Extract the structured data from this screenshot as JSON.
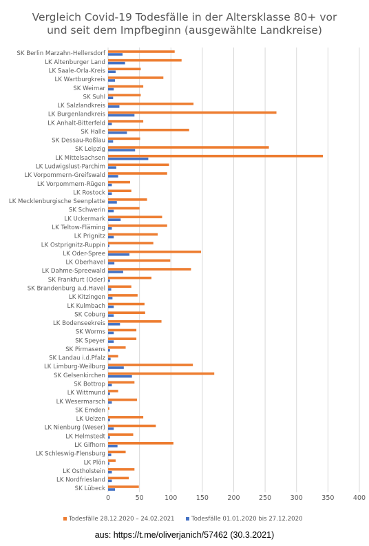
{
  "chart_data": {
    "type": "bar",
    "orientation": "horizontal",
    "title": "Vergleich Covid-19 Todesfälle in der Altersklasse 80+ vor und seit dem Impfbeginn (ausgewählte Landkreise)",
    "title_lines": [
      "Vergleich Covid-19 Todesfälle in der Altersklasse 80+ vor",
      "und seit dem Impfbeginn (ausgewählte Landkreise)"
    ],
    "xlim": [
      0,
      400
    ],
    "xticks": [
      0,
      50,
      100,
      150,
      200,
      250,
      300,
      350,
      400
    ],
    "grid": true,
    "legend_position": "bottom",
    "categories": [
      "SK Berlin Marzahn-Hellersdorf",
      "LK Altenburger Land",
      "LK Saale-Orla-Kreis",
      "LK Wartburgkreis",
      "SK Weimar",
      "SK Suhl",
      "LK Salzlandkreis",
      "LK Burgenlandkreis",
      "LK Anhalt-Bitterfeld",
      "SK Halle",
      "SK Dessau-Roßlau",
      "SK Leipzig",
      "LK Mittelsachsen",
      "LK Ludwigslust-Parchim",
      "LK Vorpommern-Greifswald",
      "LK Vorpommern-Rügen",
      "LK Rostock",
      "LK Mecklenburgische Seenplatte",
      "SK Schwerin",
      "LK Uckermark",
      "LK Teltow-Fläming",
      "LK Prignitz",
      "LK Ostprignitz-Ruppin",
      "LK Oder-Spree",
      "LK Oberhavel",
      "LK Dahme-Spreewald",
      "SK Frankfurt (Oder)",
      "SK Brandenburg a.d.Havel",
      "LK Kitzingen",
      "LK Kulmbach",
      "SK Coburg",
      "LK Bodenseekreis",
      "SK Worms",
      "SK Speyer",
      "SK Pirmasens",
      "SK Landau i.d.Pfalz",
      "LK Limburg-Weilburg",
      "SK Gelsenkirchen",
      "SK Bottrop",
      "LK Wittmund",
      "LK Wesermarsch",
      "SK Emden",
      "LK Uelzen",
      "LK Nienburg (Weser)",
      "LK Helmstedt",
      "LK Gifhorn",
      "LK Schleswig-Flensburg",
      "LK Plön",
      "LK Ostholstein",
      "LK Nordfriesland",
      "SK Lübeck"
    ],
    "series": [
      {
        "name": "Todesfälle 28.12.2020 – 24.02.2021",
        "color": "#ED7D31",
        "values": [
          106,
          117,
          52,
          88,
          56,
          52,
          136,
          268,
          56,
          129,
          51,
          256,
          342,
          97,
          94,
          35,
          37,
          62,
          50,
          86,
          94,
          79,
          72,
          148,
          99,
          132,
          69,
          37,
          47,
          58,
          59,
          85,
          45,
          45,
          28,
          16,
          135,
          169,
          42,
          16,
          46,
          2,
          56,
          76,
          40,
          104,
          28,
          12,
          42,
          33,
          49
        ]
      },
      {
        "name": "Todesfälle 01.01.2020 bis 27.12.2020",
        "color": "#4472C4",
        "values": [
          23,
          27,
          12,
          11,
          9,
          8,
          18,
          42,
          6,
          30,
          8,
          43,
          64,
          13,
          16,
          6,
          6,
          14,
          9,
          20,
          6,
          9,
          2,
          34,
          10,
          24,
          3,
          5,
          7,
          9,
          9,
          19,
          9,
          9,
          3,
          4,
          25,
          38,
          6,
          3,
          6,
          0,
          3,
          9,
          3,
          15,
          5,
          2,
          6,
          6,
          11
        ]
      }
    ]
  },
  "source_note": "aus: https://t.me/oliverjanich/57462 (30.3.2021)"
}
